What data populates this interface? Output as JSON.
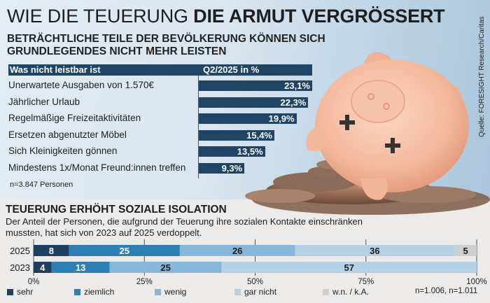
{
  "header": {
    "title_light": "WIE DIE TEUERUNG ",
    "title_bold": "DIE ARMUT VERGRÖSSERT",
    "subtitle": "BETRÄCHTLICHE TEILE DER BEVÖLKERUNG KÖNNEN SICH GRUNDLEGENDES NICHT MEHR LEISTEN",
    "source": "Quelle: FORESIGHT Research/Caritas"
  },
  "colors": {
    "navy": "#1f4466",
    "sehr": "#1f3f5f",
    "ziemlich": "#2e7fb5",
    "wenig": "#86b6da",
    "gar_nicht": "#b5d1e8",
    "wn_ka": "#cfcfcf"
  },
  "chart_data": [
    {
      "type": "bar",
      "orientation": "horizontal",
      "title": "BETRÄCHTLICHE TEILE DER BEVÖLKERUNG KÖNNEN SICH GRUNDLEGENDES NICHT MEHR LEISTEN",
      "column_headers": [
        "Was nicht leistbar ist",
        "Q2/2025 in %"
      ],
      "categories": [
        "Unerwartete Ausgaben von 1.570€",
        "Jährlicher Urlaub",
        "Regelmäßige Freizeitaktivitäten",
        "Ersetzen abgenutzter Möbel",
        "Sich Kleinigkeiten gönnen",
        "Mindestens 1x/Monat Freund:innen treffen"
      ],
      "values": [
        23.1,
        22.3,
        19.9,
        15.4,
        13.5,
        9.3
      ],
      "value_labels": [
        "23,1%",
        "22,3%",
        "19,9%",
        "15,4%",
        "13,5%",
        "9,3%"
      ],
      "unit": "%",
      "note": "n=3.847 Personen"
    },
    {
      "type": "bar",
      "orientation": "horizontal",
      "stacked": true,
      "title": "TEUERUNG ERHÖHT SOZIALE ISOLATION",
      "description": "Der Anteil der Personen, die aufgrund der Teuerung ihre sozialen Kontakte einschränken mussten, hat sich von 2023 auf 2025 verdoppelt.",
      "categories": [
        "2025",
        "2023"
      ],
      "series": [
        {
          "name": "sehr",
          "values": [
            8,
            4
          ]
        },
        {
          "name": "ziemlich",
          "values": [
            25,
            13
          ]
        },
        {
          "name": "wenig",
          "values": [
            26,
            25
          ]
        },
        {
          "name": "gar nicht",
          "values": [
            36,
            57
          ]
        },
        {
          "name": "w.n. / k.A.",
          "values": [
            5,
            null
          ]
        }
      ],
      "xlim": [
        0,
        100
      ],
      "xticks": [
        "0%",
        "25%",
        "50%",
        "75%",
        "100%"
      ],
      "xtick_values": [
        0,
        25,
        50,
        75,
        100
      ],
      "grid": true,
      "legend_position": "bottom",
      "note": "n=1.006, n=1.011"
    }
  ]
}
